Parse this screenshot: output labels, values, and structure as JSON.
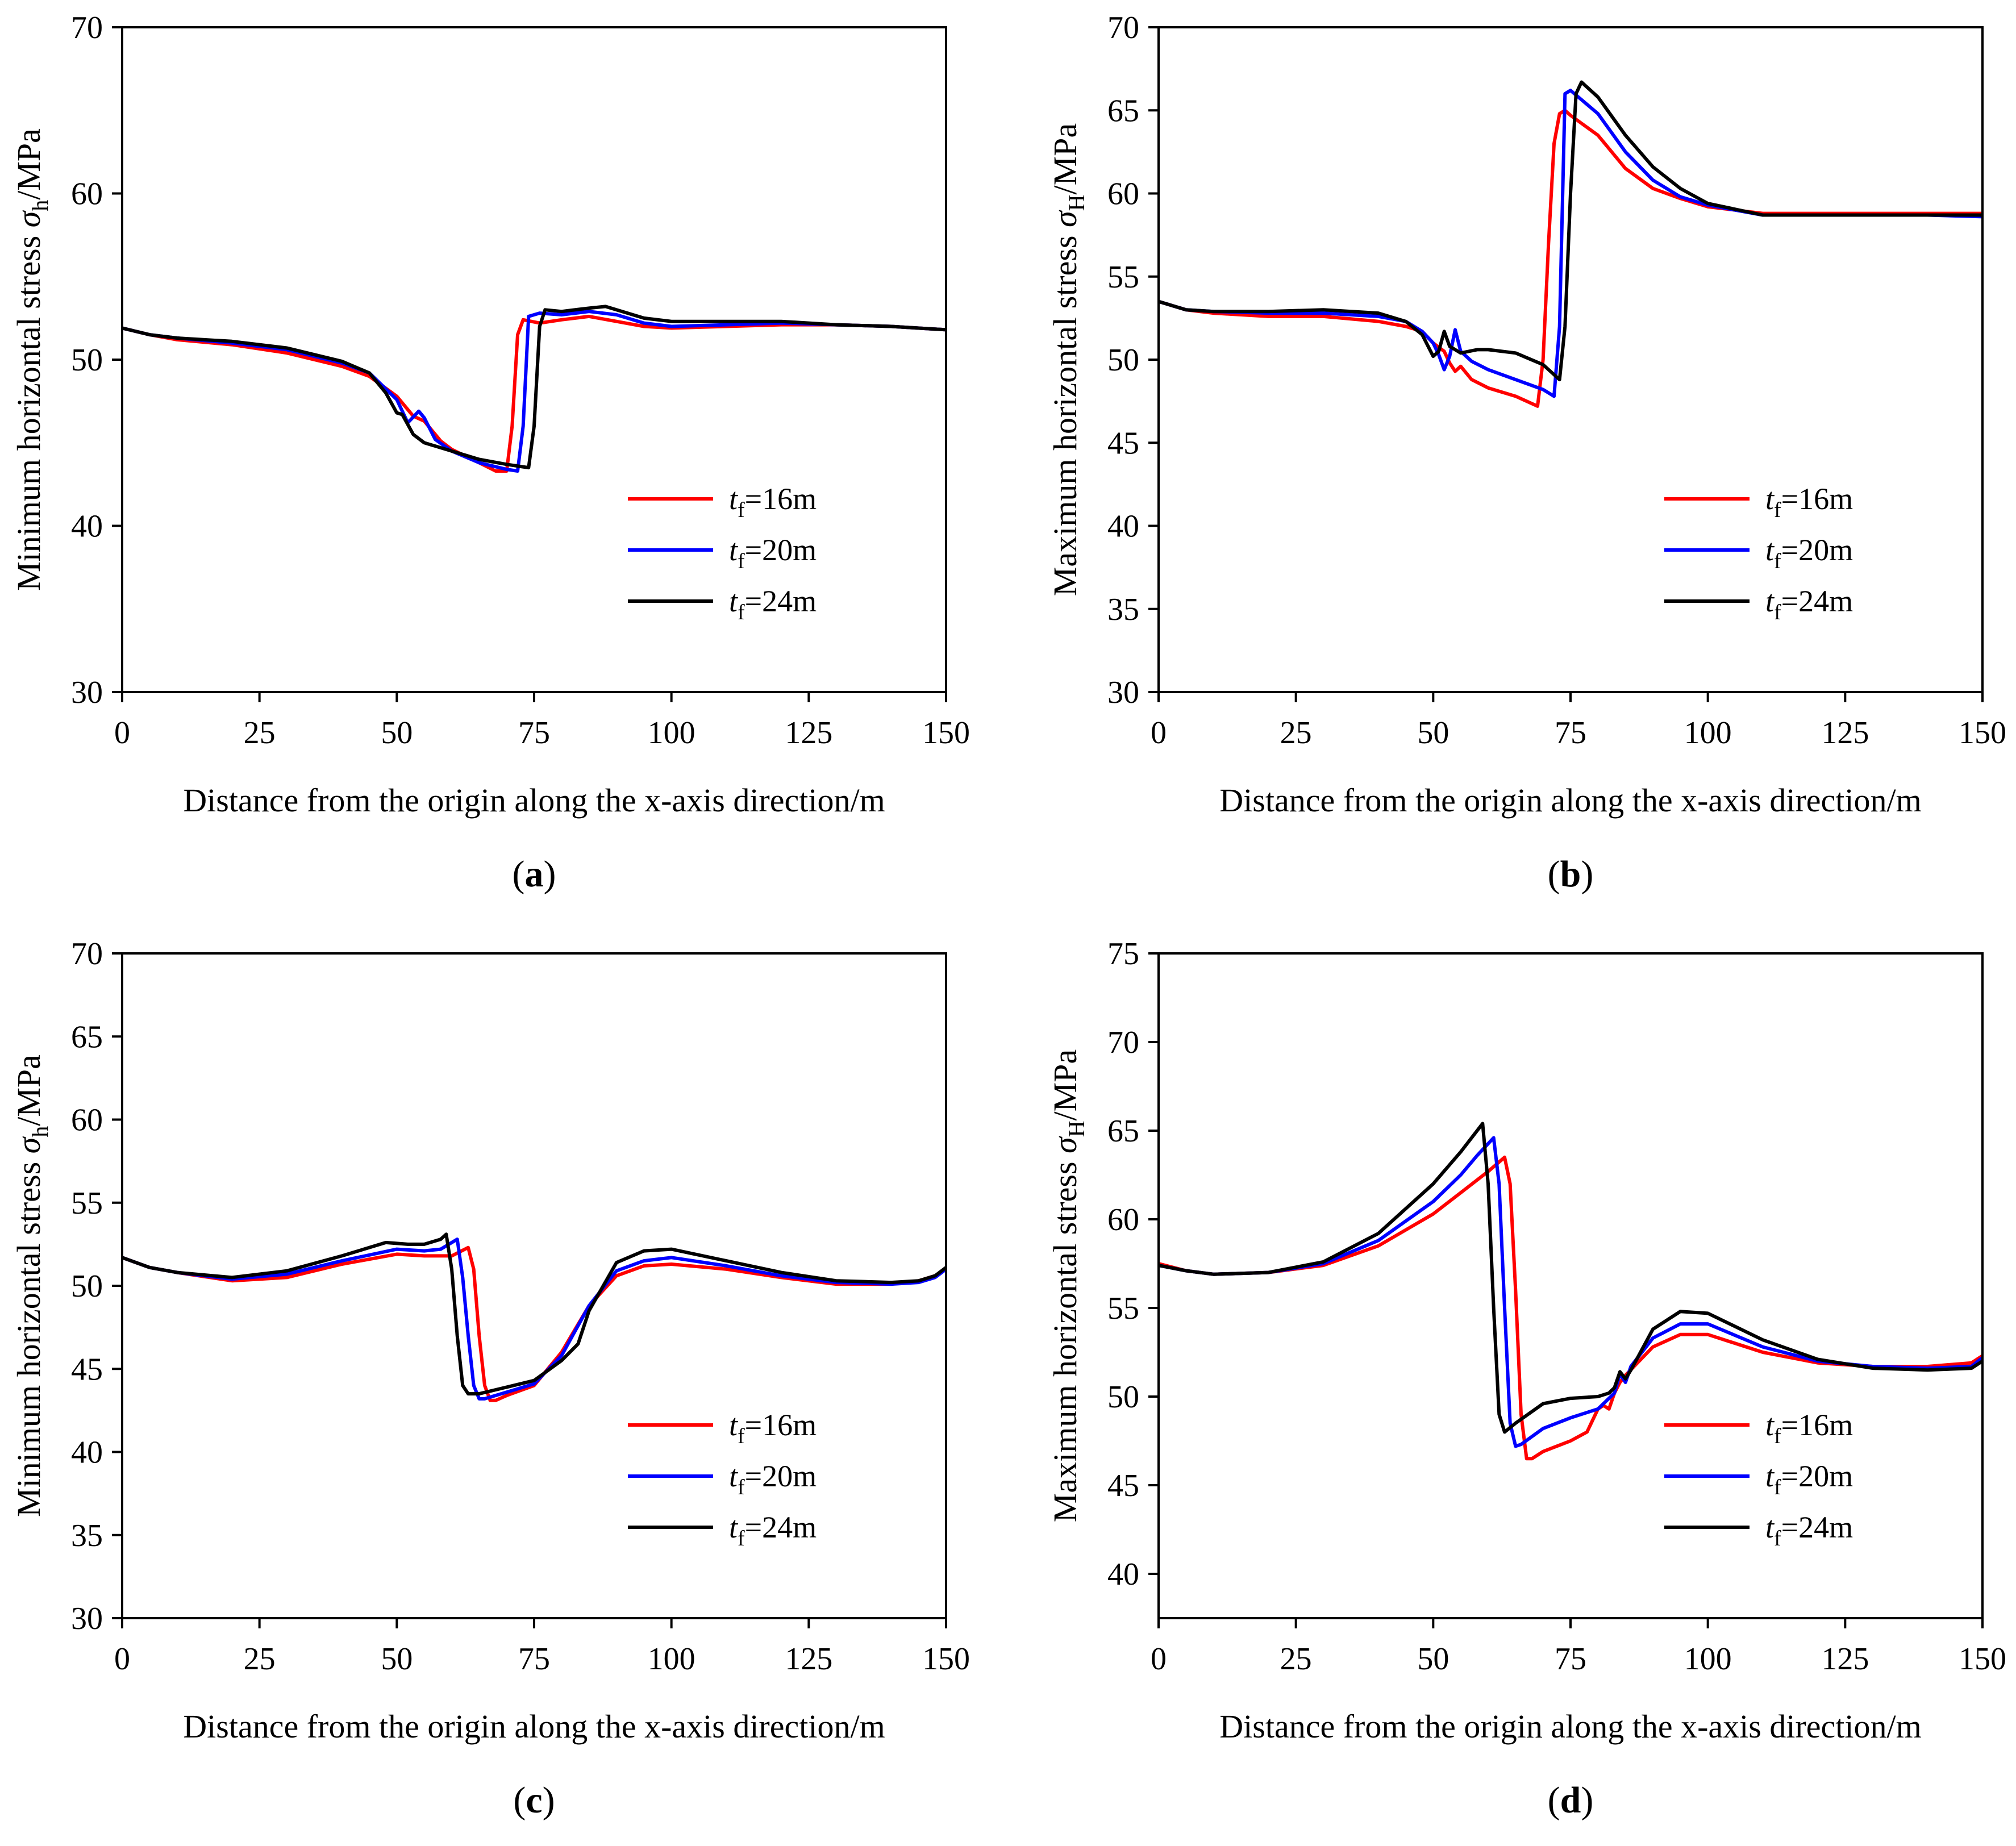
{
  "panels": [
    {
      "id": "a",
      "caption_letter": "a",
      "ylabel_prefix": "Minimum horizontal stress ",
      "ylabel_sigma": "σ",
      "ylabel_sub": "h",
      "ylabel_suffix": "/MPa",
      "xlabel": "Distance from the origin along the x-axis direction/m",
      "xlim": [
        0,
        150
      ],
      "ylim": [
        30,
        70
      ],
      "xticks": [
        0,
        25,
        50,
        75,
        100,
        125,
        150
      ],
      "yticks": [
        30,
        40,
        50,
        60,
        70
      ],
      "legend": [
        {
          "prefix": "t",
          "sub": "f",
          "suffix": "=16m",
          "color": "#ff0000"
        },
        {
          "prefix": "t",
          "sub": "f",
          "suffix": "=20m",
          "color": "#0000ff"
        },
        {
          "prefix": "t",
          "sub": "f",
          "suffix": "=24m",
          "color": "#000000"
        }
      ]
    },
    {
      "id": "b",
      "caption_letter": "b",
      "ylabel_prefix": "Maximum horizontal stress ",
      "ylabel_sigma": "σ",
      "ylabel_sub": "H",
      "ylabel_suffix": "/MPa",
      "xlabel": "Distance from the origin along the x-axis direction/m",
      "xlim": [
        0,
        150
      ],
      "ylim": [
        30,
        70
      ],
      "xticks": [
        0,
        25,
        50,
        75,
        100,
        125,
        150
      ],
      "yticks": [
        30,
        35,
        40,
        45,
        50,
        55,
        60,
        65,
        70
      ],
      "legend": [
        {
          "prefix": "t",
          "sub": "f",
          "suffix": "=16m",
          "color": "#ff0000"
        },
        {
          "prefix": "t",
          "sub": "f",
          "suffix": "=20m",
          "color": "#0000ff"
        },
        {
          "prefix": "t",
          "sub": "f",
          "suffix": "=24m",
          "color": "#000000"
        }
      ]
    },
    {
      "id": "c",
      "caption_letter": "c",
      "ylabel_prefix": "Minimum horizontal stress ",
      "ylabel_sigma": "σ",
      "ylabel_sub": "h",
      "ylabel_suffix": "/MPa",
      "xlabel": "Distance from the origin along the x-axis direction/m",
      "xlim": [
        0,
        150
      ],
      "ylim": [
        30,
        70
      ],
      "xticks": [
        0,
        25,
        50,
        75,
        100,
        125,
        150
      ],
      "yticks": [
        30,
        35,
        40,
        45,
        50,
        55,
        60,
        65,
        70
      ],
      "legend": [
        {
          "prefix": "t",
          "sub": "f",
          "suffix": "=16m",
          "color": "#ff0000"
        },
        {
          "prefix": "t",
          "sub": "f",
          "suffix": "=20m",
          "color": "#0000ff"
        },
        {
          "prefix": "t",
          "sub": "f",
          "suffix": "=24m",
          "color": "#000000"
        }
      ]
    },
    {
      "id": "d",
      "caption_letter": "d",
      "ylabel_prefix": "Maximum horizontal stress ",
      "ylabel_sigma": "σ",
      "ylabel_sub": "H",
      "ylabel_suffix": "/MPa",
      "xlabel": "Distance from the origin along the x-axis direction/m",
      "xlim": [
        0,
        150
      ],
      "ylim": [
        37.5,
        75
      ],
      "xticks": [
        0,
        25,
        50,
        75,
        100,
        125,
        150
      ],
      "yticks": [
        40,
        45,
        50,
        55,
        60,
        65,
        70,
        75
      ],
      "legend": [
        {
          "prefix": "t",
          "sub": "f",
          "suffix": "=16m",
          "color": "#ff0000"
        },
        {
          "prefix": "t",
          "sub": "f",
          "suffix": "=20m",
          "color": "#0000ff"
        },
        {
          "prefix": "t",
          "sub": "f",
          "suffix": "=24m",
          "color": "#000000"
        }
      ]
    }
  ],
  "chart_data": [
    {
      "type": "line",
      "panel": "a",
      "title": "",
      "xlabel": "Distance from the origin along the x-axis direction/m",
      "ylabel": "Minimum horizontal stress σh/MPa",
      "xlim": [
        0,
        150
      ],
      "ylim": [
        30,
        70
      ],
      "series": [
        {
          "name": "tf=16m",
          "color": "#ff0000",
          "x": [
            0,
            5,
            10,
            20,
            30,
            40,
            45,
            50,
            53,
            55,
            58,
            60,
            65,
            68,
            70,
            71,
            72,
            73,
            76,
            80,
            85,
            90,
            95,
            100,
            110,
            120,
            130,
            140,
            150
          ],
          "y": [
            51.9,
            51.5,
            51.2,
            50.9,
            50.4,
            49.6,
            49.0,
            47.8,
            46.6,
            46.3,
            45.1,
            44.6,
            43.8,
            43.3,
            43.3,
            46.0,
            51.5,
            52.4,
            52.2,
            52.4,
            52.6,
            52.3,
            52.0,
            51.9,
            52.0,
            52.1,
            52.1,
            52.0,
            51.8
          ]
        },
        {
          "name": "tf=20m",
          "color": "#0000ff",
          "x": [
            0,
            5,
            10,
            20,
            30,
            40,
            45,
            50,
            52,
            54,
            55,
            57,
            60,
            65,
            70,
            72,
            73,
            74,
            76,
            80,
            85,
            90,
            95,
            100,
            110,
            120,
            130,
            140,
            150
          ],
          "y": [
            51.9,
            51.5,
            51.3,
            51.0,
            50.6,
            49.8,
            49.2,
            47.6,
            46.2,
            46.9,
            46.5,
            45.2,
            44.5,
            43.8,
            43.4,
            43.3,
            46.0,
            52.6,
            52.8,
            52.7,
            52.9,
            52.7,
            52.2,
            52.0,
            52.1,
            52.2,
            52.1,
            52.0,
            51.8
          ]
        },
        {
          "name": "tf=24m",
          "color": "#000000",
          "x": [
            0,
            5,
            10,
            20,
            30,
            40,
            45,
            48,
            50,
            51,
            53,
            55,
            60,
            65,
            70,
            74,
            75,
            76,
            77,
            80,
            85,
            88,
            90,
            95,
            100,
            110,
            120,
            130,
            140,
            150
          ],
          "y": [
            51.9,
            51.5,
            51.3,
            51.1,
            50.7,
            49.9,
            49.2,
            48.0,
            46.8,
            46.7,
            45.5,
            45.0,
            44.5,
            44.0,
            43.7,
            43.5,
            46.0,
            52.0,
            53.0,
            52.9,
            53.1,
            53.2,
            53.0,
            52.5,
            52.3,
            52.3,
            52.3,
            52.1,
            52.0,
            51.8
          ]
        }
      ]
    },
    {
      "type": "line",
      "panel": "b",
      "title": "",
      "xlabel": "Distance from the origin along the x-axis direction/m",
      "ylabel": "Maximum horizontal stress σH/MPa",
      "xlim": [
        0,
        150
      ],
      "ylim": [
        30,
        70
      ],
      "series": [
        {
          "name": "tf=16m",
          "color": "#ff0000",
          "x": [
            0,
            5,
            10,
            20,
            30,
            40,
            45,
            48,
            50,
            52,
            53,
            54,
            55,
            57,
            60,
            65,
            69,
            70,
            71,
            72,
            73,
            74,
            75,
            80,
            85,
            90,
            95,
            100,
            110,
            120,
            130,
            140,
            150
          ],
          "y": [
            53.5,
            53.0,
            52.8,
            52.6,
            52.6,
            52.3,
            52.0,
            51.7,
            51.0,
            50.5,
            49.8,
            49.3,
            49.6,
            48.8,
            48.3,
            47.8,
            47.2,
            50.0,
            57.0,
            63.0,
            64.8,
            65.0,
            64.7,
            63.5,
            61.5,
            60.3,
            59.7,
            59.2,
            58.8,
            58.8,
            58.8,
            58.8,
            58.8
          ]
        },
        {
          "name": "tf=20m",
          "color": "#0000ff",
          "x": [
            0,
            5,
            10,
            20,
            30,
            40,
            45,
            48,
            50,
            51,
            52,
            53,
            54,
            55,
            57,
            60,
            65,
            70,
            72,
            73,
            74,
            75,
            80,
            85,
            90,
            95,
            100,
            110,
            120,
            130,
            140,
            150
          ],
          "y": [
            53.5,
            53.0,
            52.9,
            52.8,
            52.8,
            52.6,
            52.3,
            51.7,
            51.0,
            50.3,
            49.4,
            50.2,
            51.8,
            50.5,
            49.9,
            49.4,
            48.8,
            48.2,
            47.8,
            52.0,
            66.0,
            66.2,
            64.8,
            62.5,
            60.8,
            59.8,
            59.3,
            58.7,
            58.7,
            58.7,
            58.7,
            58.6
          ]
        },
        {
          "name": "tf=24m",
          "color": "#000000",
          "x": [
            0,
            5,
            10,
            20,
            30,
            40,
            45,
            48,
            50,
            51,
            52,
            53,
            55,
            58,
            60,
            65,
            70,
            73,
            74,
            75,
            76,
            77,
            80,
            85,
            90,
            95,
            100,
            110,
            120,
            130,
            140,
            150
          ],
          "y": [
            53.5,
            53.0,
            52.9,
            52.9,
            53.0,
            52.8,
            52.3,
            51.5,
            50.2,
            50.5,
            51.7,
            50.8,
            50.4,
            50.6,
            50.6,
            50.4,
            49.7,
            48.8,
            52.0,
            60.0,
            66.0,
            66.7,
            65.8,
            63.5,
            61.6,
            60.3,
            59.4,
            58.7,
            58.7,
            58.7,
            58.7,
            58.7
          ]
        }
      ]
    },
    {
      "type": "line",
      "panel": "c",
      "title": "",
      "xlabel": "Distance from the origin along the x-axis direction/m",
      "ylabel": "Minimum horizontal stress σh/MPa",
      "xlim": [
        0,
        150
      ],
      "ylim": [
        30,
        70
      ],
      "series": [
        {
          "name": "tf=16m",
          "color": "#ff0000",
          "x": [
            0,
            5,
            10,
            20,
            30,
            40,
            50,
            55,
            60,
            63,
            64,
            65,
            66,
            67,
            68,
            70,
            75,
            80,
            85,
            90,
            95,
            100,
            110,
            120,
            130,
            140,
            145,
            148,
            150
          ],
          "y": [
            51.7,
            51.1,
            50.8,
            50.3,
            50.5,
            51.3,
            51.9,
            51.8,
            51.8,
            52.3,
            51.0,
            47.0,
            44.0,
            43.1,
            43.1,
            43.4,
            44.0,
            46.0,
            48.8,
            50.6,
            51.2,
            51.3,
            51.0,
            50.5,
            50.1,
            50.1,
            50.3,
            50.6,
            51.0
          ]
        },
        {
          "name": "tf=20m",
          "color": "#0000ff",
          "x": [
            0,
            5,
            10,
            20,
            30,
            40,
            50,
            55,
            58,
            61,
            62,
            63,
            64,
            65,
            66,
            70,
            75,
            80,
            85,
            90,
            95,
            100,
            110,
            120,
            130,
            140,
            145,
            148,
            150
          ],
          "y": [
            51.7,
            51.1,
            50.8,
            50.4,
            50.7,
            51.5,
            52.2,
            52.1,
            52.2,
            52.8,
            50.5,
            47.0,
            44.0,
            43.2,
            43.2,
            43.6,
            44.1,
            45.8,
            48.8,
            50.9,
            51.5,
            51.7,
            51.2,
            50.6,
            50.2,
            50.1,
            50.2,
            50.5,
            51.0
          ]
        },
        {
          "name": "tf=24m",
          "color": "#000000",
          "x": [
            0,
            5,
            10,
            20,
            30,
            40,
            48,
            52,
            55,
            58,
            59,
            60,
            61,
            62,
            63,
            65,
            70,
            75,
            80,
            83,
            85,
            90,
            95,
            100,
            110,
            120,
            130,
            140,
            145,
            148,
            150
          ],
          "y": [
            51.7,
            51.1,
            50.8,
            50.5,
            50.9,
            51.8,
            52.6,
            52.5,
            52.5,
            52.8,
            53.1,
            51.0,
            47.0,
            44.0,
            43.5,
            43.5,
            43.9,
            44.3,
            45.5,
            46.5,
            48.5,
            51.4,
            52.1,
            52.2,
            51.5,
            50.8,
            50.3,
            50.2,
            50.3,
            50.6,
            51.1
          ]
        }
      ]
    },
    {
      "type": "line",
      "panel": "d",
      "title": "",
      "xlabel": "Distance from the origin along the x-axis direction/m",
      "ylabel": "Maximum horizontal stress σH/MPa",
      "xlim": [
        0,
        150
      ],
      "ylim": [
        37.5,
        75
      ],
      "series": [
        {
          "name": "tf=16m",
          "color": "#ff0000",
          "x": [
            0,
            5,
            10,
            20,
            30,
            40,
            50,
            55,
            60,
            63,
            64,
            65,
            66,
            67,
            68,
            70,
            75,
            78,
            80,
            81,
            82,
            83,
            84,
            85,
            90,
            95,
            100,
            110,
            120,
            130,
            140,
            148,
            150
          ],
          "y": [
            57.5,
            57.1,
            56.9,
            57.0,
            57.4,
            58.5,
            60.3,
            61.5,
            62.7,
            63.5,
            62.0,
            56.0,
            49.0,
            46.5,
            46.5,
            46.9,
            47.5,
            48.0,
            49.3,
            49.5,
            49.3,
            50.2,
            50.8,
            51.2,
            52.8,
            53.5,
            53.5,
            52.5,
            51.9,
            51.7,
            51.7,
            51.9,
            52.3
          ]
        },
        {
          "name": "tf=20m",
          "color": "#0000ff",
          "x": [
            0,
            5,
            10,
            20,
            30,
            40,
            50,
            55,
            58,
            61,
            62,
            63,
            64,
            65,
            66,
            70,
            75,
            80,
            83,
            84,
            85,
            86,
            90,
            95,
            100,
            110,
            120,
            130,
            140,
            148,
            150
          ],
          "y": [
            57.4,
            57.1,
            56.9,
            57.0,
            57.5,
            58.8,
            61.0,
            62.5,
            63.6,
            64.6,
            62.0,
            55.0,
            48.5,
            47.2,
            47.3,
            48.2,
            48.8,
            49.3,
            50.2,
            51.3,
            50.8,
            51.7,
            53.3,
            54.1,
            54.1,
            52.8,
            52.0,
            51.7,
            51.6,
            51.7,
            52.2
          ]
        },
        {
          "name": "tf=24m",
          "color": "#000000",
          "x": [
            0,
            5,
            10,
            20,
            30,
            40,
            50,
            55,
            59,
            60,
            61,
            62,
            63,
            65,
            70,
            75,
            80,
            82,
            83,
            84,
            85,
            86,
            90,
            95,
            100,
            110,
            120,
            130,
            140,
            148,
            150
          ],
          "y": [
            57.4,
            57.1,
            56.9,
            57.0,
            57.6,
            59.2,
            62.0,
            63.8,
            65.4,
            62.0,
            55.0,
            49.0,
            48.0,
            48.5,
            49.6,
            49.9,
            50.0,
            50.2,
            50.5,
            51.4,
            51.0,
            51.5,
            53.8,
            54.8,
            54.7,
            53.2,
            52.1,
            51.6,
            51.5,
            51.6,
            52.0
          ]
        }
      ]
    }
  ]
}
